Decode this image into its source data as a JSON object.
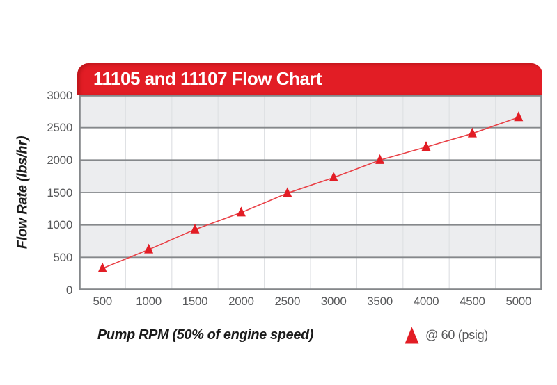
{
  "header": {
    "title": "11105 and 11107 Flow Chart"
  },
  "chart_data": {
    "type": "line",
    "title": "11105 and 11107 Flow Chart",
    "xlabel": "Pump RPM (50% of engine speed)",
    "ylabel": "Flow Rate (lbs/hr)",
    "x": [
      500,
      1000,
      1500,
      2000,
      2500,
      3000,
      3500,
      4000,
      4500,
      5000
    ],
    "xtick_labels": [
      "500",
      "1000",
      "1500",
      "2000",
      "2500",
      "3000",
      "3500",
      "4000",
      "4500",
      "5000"
    ],
    "ytick_labels": [
      "3000",
      "2500",
      "2000",
      "1500",
      "1000",
      "500",
      "0"
    ],
    "ylim": [
      0,
      3000
    ],
    "ytick_interval": 500,
    "grid": "horizontal-bands-with-faint-vertical-lines",
    "legend_position": "below-right",
    "series": [
      {
        "name": "@ 60 (psig)",
        "marker": "triangle",
        "color": "#E21D25",
        "values": [
          330,
          620,
          930,
          1190,
          1490,
          1730,
          2000,
          2200,
          2410,
          2660
        ]
      }
    ]
  },
  "legend": {
    "label": "@ 60 (psig)"
  },
  "colors": {
    "accent_red": "#E21D25",
    "line_red": "#E94046",
    "band_gray": "#ECEDEF",
    "band_white": "#FFFFFF",
    "gridline": "#85888B",
    "vline": "#DFE1E4",
    "tick_text": "#58595B",
    "axis_title_text": "#1B1B1B",
    "title_text": "#FFFFFF"
  }
}
